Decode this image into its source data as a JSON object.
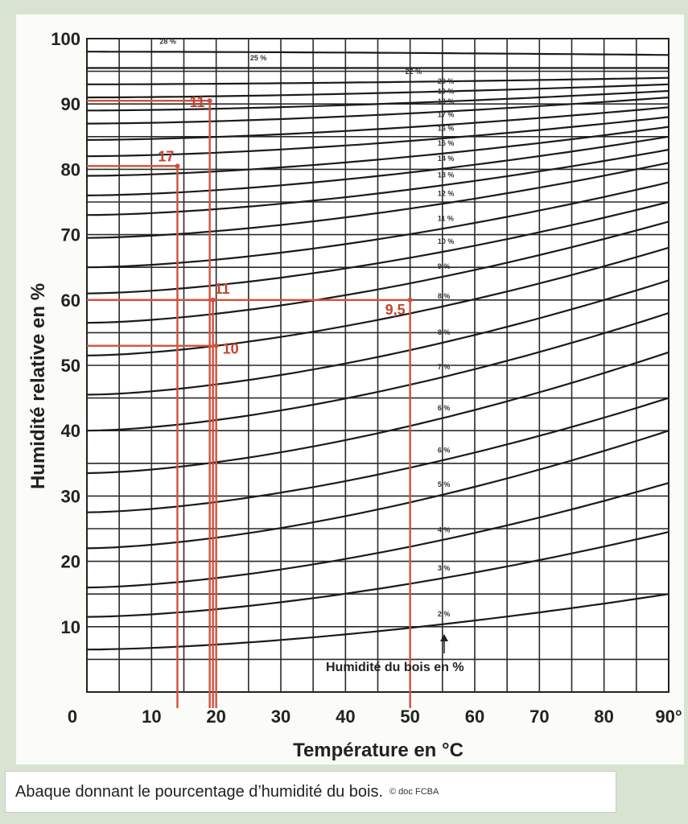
{
  "chart_data": {
    "type": "line",
    "title": "",
    "xlabel": "Température en °C",
    "ylabel": "Humidité relative en %",
    "xlim": [
      0,
      90
    ],
    "ylim": [
      0,
      100
    ],
    "x_ticks": [
      "0",
      "10",
      "20",
      "30",
      "40",
      "50",
      "60",
      "70",
      "80",
      "90°"
    ],
    "y_ticks": [
      "10",
      "20",
      "30",
      "40",
      "50",
      "60",
      "70",
      "80",
      "90",
      "100"
    ],
    "grid": true,
    "curve_family_label": "Humidité du bois en %",
    "curves": [
      {
        "label": "2 %",
        "y0": 6.5,
        "y90": 15
      },
      {
        "label": "3 %",
        "y0": 11.5,
        "y90": 24.5
      },
      {
        "label": "4 %",
        "y0": 16,
        "y90": 32
      },
      {
        "label": "5 %",
        "y0": 22,
        "y90": 40
      },
      {
        "label": "6 %",
        "y0": 27.5,
        "y90": 45
      },
      {
        "label": "6 %",
        "y0": 33.5,
        "y90": 52
      },
      {
        "label": "7 %",
        "y0": 40,
        "y90": 58
      },
      {
        "label": "8 %",
        "y0": 45.5,
        "y90": 63
      },
      {
        "label": "8 %",
        "y0": 51.5,
        "y90": 68
      },
      {
        "label": "9 %",
        "y0": 56.5,
        "y90": 72
      },
      {
        "label": "10 %",
        "y0": 61,
        "y90": 75
      },
      {
        "label": "11 %",
        "y0": 65,
        "y90": 78
      },
      {
        "label": "12 %",
        "y0": 69.5,
        "y90": 81
      },
      {
        "label": "13 %",
        "y0": 73,
        "y90": 83
      },
      {
        "label": "14 %",
        "y0": 76,
        "y90": 85
      },
      {
        "label": "15 %",
        "y0": 79,
        "y90": 86.5
      },
      {
        "label": "16 %",
        "y0": 82,
        "y90": 88
      },
      {
        "label": "17 %",
        "y0": 84.5,
        "y90": 89.5
      },
      {
        "label": "18 %",
        "y0": 87,
        "y90": 91
      },
      {
        "label": "19 %",
        "y0": 89,
        "y90": 92
      },
      {
        "label": "20 %",
        "y0": 91,
        "y90": 93
      },
      {
        "label": "22 %",
        "y0": 93,
        "y90": 94
      },
      {
        "label": "25 %",
        "y0": 95.5,
        "y90": 95.5
      },
      {
        "label": "28 %",
        "y0": 98,
        "y90": 97.5
      }
    ],
    "annotations": [
      {
        "label": "11",
        "x": 19,
        "y": 90.5
      },
      {
        "label": "17",
        "x": 14,
        "y": 80.5
      },
      {
        "label": "11",
        "x": 19,
        "y": 60
      },
      {
        "label": "9,5",
        "x": 50,
        "y": 60
      },
      {
        "label": "10",
        "x": 20,
        "y": 53
      }
    ],
    "guide_lines": [
      {
        "x": 19,
        "y": 90.5
      },
      {
        "x": 14,
        "y": 80.5
      },
      {
        "x": 19.5,
        "y": 60
      },
      {
        "x": 50,
        "y": 60
      },
      {
        "x": 20,
        "y": 53
      }
    ],
    "colors": {
      "curves": "#1b1b1b",
      "grid": "#2a2a2a",
      "annotations": "#d2503c"
    }
  },
  "caption": "Abaque donnant le pourcentage d’humidité du bois.",
  "credit": "© doc FCBA"
}
